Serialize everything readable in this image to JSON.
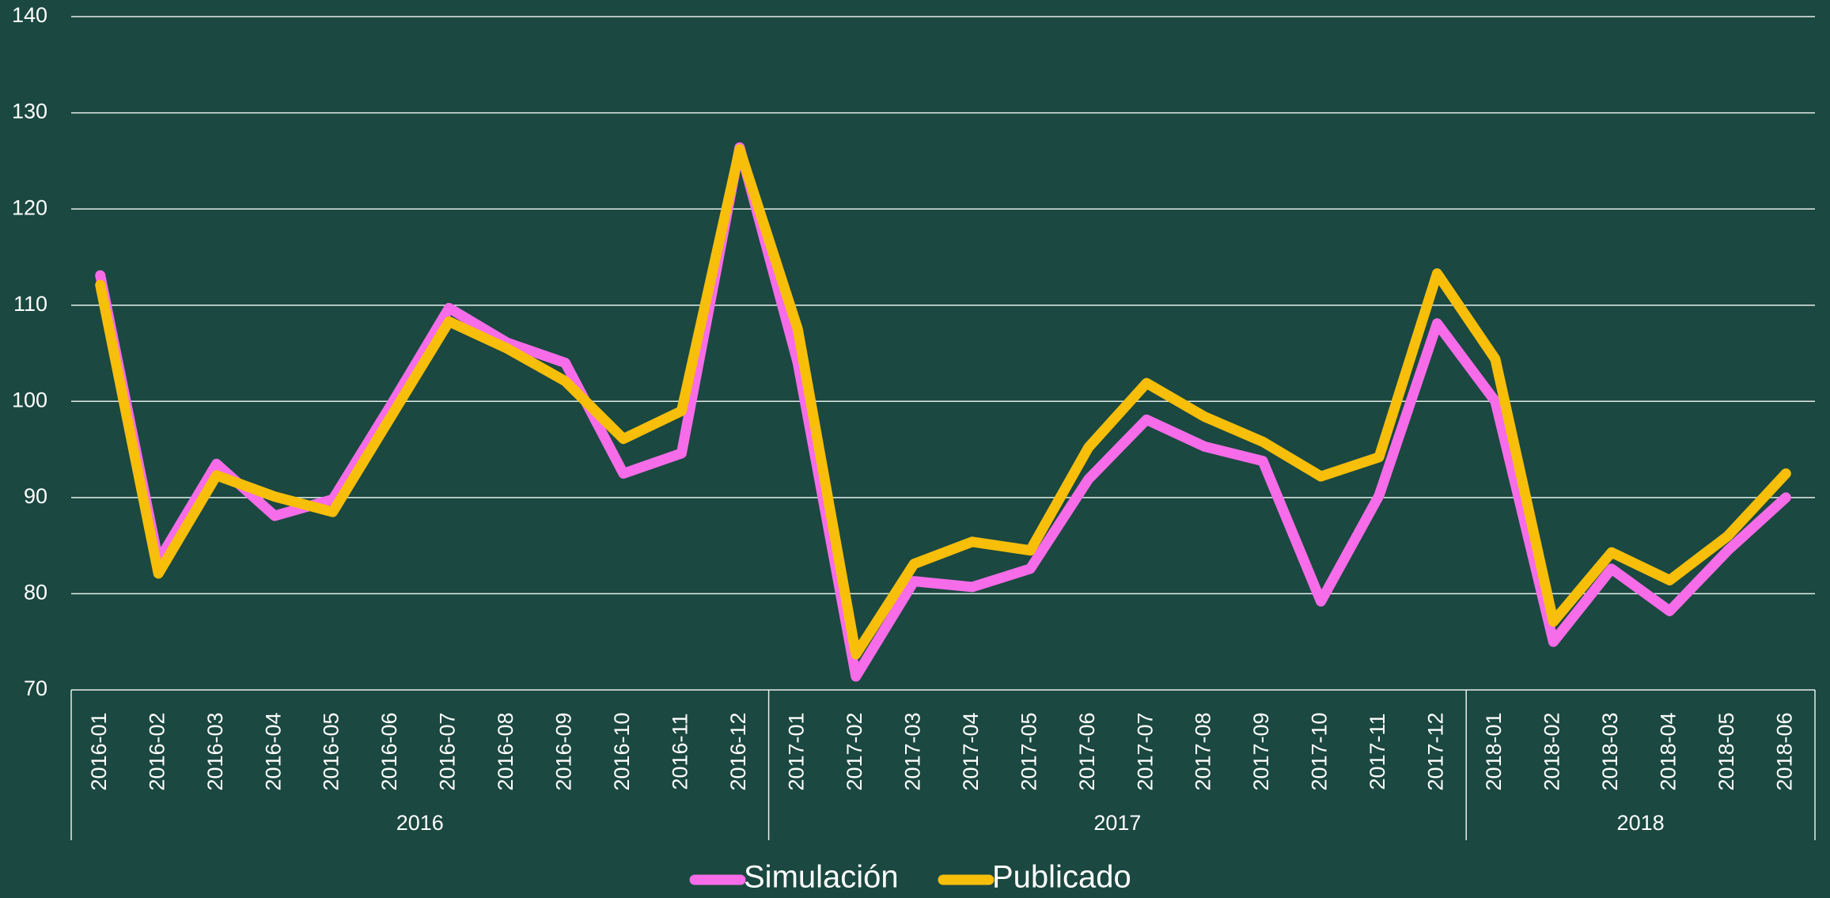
{
  "chart_data": {
    "type": "line",
    "categories": [
      "2016-01",
      "2016-02",
      "2016-03",
      "2016-04",
      "2016-05",
      "2016-06",
      "2016-07",
      "2016-08",
      "2016-09",
      "2016-10",
      "2016-11",
      "2016-12",
      "2017-01",
      "2017-02",
      "2017-03",
      "2017-04",
      "2017-05",
      "2017-06",
      "2017-07",
      "2017-08",
      "2017-09",
      "2017-10",
      "2017-11",
      "2017-12",
      "2018-01",
      "2018-02",
      "2018-03",
      "2018-04",
      "2018-05",
      "2018-06"
    ],
    "groups": [
      "2016",
      "2017",
      "2018"
    ],
    "series": [
      {
        "name": "Simulación",
        "color": "#f76ce9",
        "values": [
          113.1,
          83.4,
          93.5,
          88.1,
          89.8,
          99.6,
          109.7,
          106.1,
          104,
          92.5,
          94.6,
          126.4,
          104,
          71.4,
          81.3,
          80.7,
          82.6,
          91.9,
          98.1,
          95.3,
          93.8,
          79.2,
          90.2,
          108.1,
          100,
          75,
          82.6,
          78.2,
          84.5,
          90
        ]
      },
      {
        "name": "Publicado",
        "color": "#f7be0a",
        "values": [
          112.1,
          82.1,
          92.3,
          90.1,
          88.5,
          98.4,
          108.3,
          105.5,
          102.1,
          96.1,
          99,
          126.2,
          107.5,
          73.7,
          83.1,
          85.4,
          84.5,
          95.2,
          101.9,
          98.4,
          95.8,
          92.2,
          94.2,
          113.3,
          104.4,
          77.1,
          84.3,
          81.4,
          86,
          92.5
        ]
      }
    ],
    "ylim": [
      70,
      140
    ],
    "yticks": [
      70,
      80,
      90,
      100,
      110,
      120,
      130,
      140
    ],
    "grid": true
  }
}
